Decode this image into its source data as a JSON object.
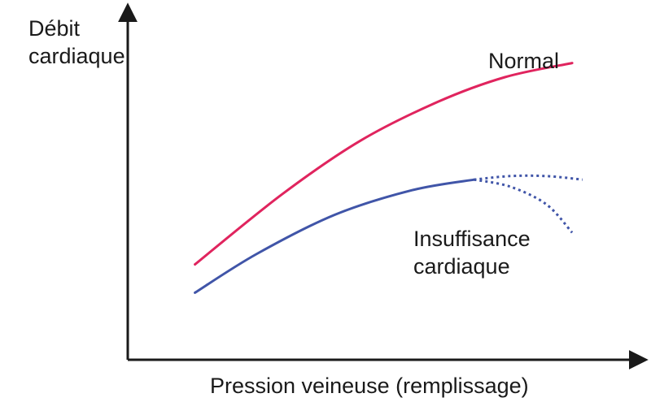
{
  "chart_data": {
    "type": "line",
    "xlabel": "Pression veineuse (remplissage)",
    "ylabel": [
      "Débit",
      "cardiaque"
    ],
    "xlim": [
      0,
      100
    ],
    "ylim": [
      0,
      100
    ],
    "grid": false,
    "series": [
      {
        "name": "Normal",
        "color": "#e0245e",
        "style": "solid",
        "points": [
          [
            13,
            27
          ],
          [
            30,
            47
          ],
          [
            45,
            62
          ],
          [
            60,
            73
          ],
          [
            73,
            80
          ],
          [
            86,
            84
          ]
        ]
      },
      {
        "name": "Insuffisance cardiaque",
        "color": "#4055a8",
        "style": "solid",
        "points": [
          [
            13,
            19
          ],
          [
            25,
            30
          ],
          [
            40,
            41
          ],
          [
            55,
            48
          ],
          [
            67,
            51
          ]
        ]
      },
      {
        "name": "",
        "color": "#4055a8",
        "style": "dotted",
        "points": [
          [
            67,
            51
          ],
          [
            74,
            52
          ],
          [
            81,
            52
          ],
          [
            88,
            51
          ]
        ]
      },
      {
        "name": "",
        "color": "#4055a8",
        "style": "dotted",
        "points": [
          [
            67,
            51
          ],
          [
            74,
            49
          ],
          [
            81,
            44
          ],
          [
            86,
            36
          ]
        ]
      }
    ],
    "annotations": [
      {
        "text": [
          "Normal"
        ],
        "series": 0
      },
      {
        "text": [
          "Insuffisance",
          "cardiaque"
        ],
        "series": 1
      }
    ]
  }
}
